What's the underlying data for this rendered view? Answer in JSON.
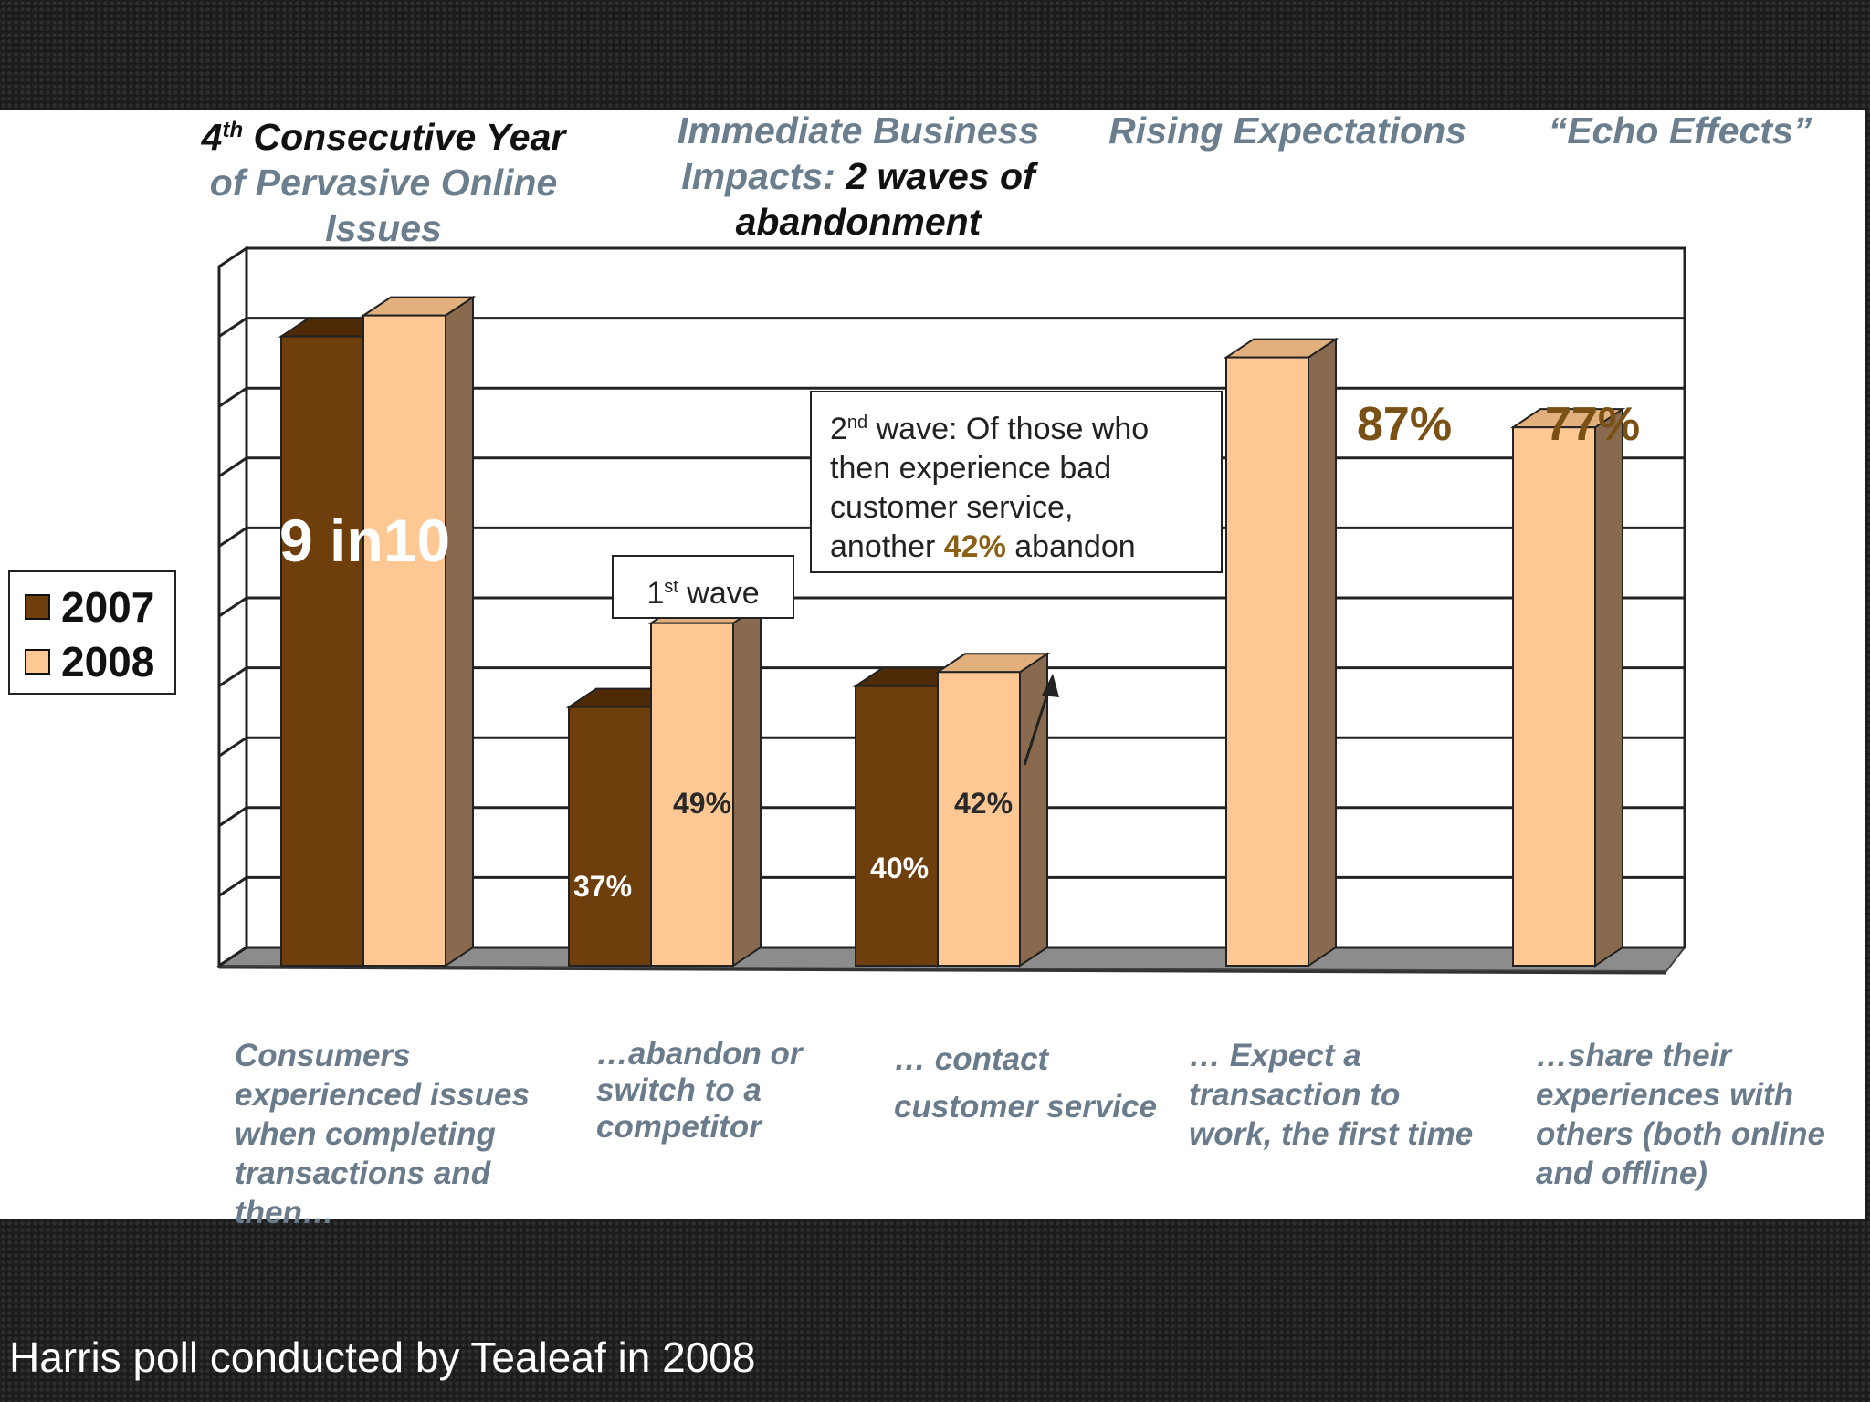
{
  "headers": {
    "col1": {
      "sup_num": "4",
      "sup": "th",
      "line1_rest": " Consecutive Year",
      "line2": "of Pervasive Online",
      "line3": "Issues"
    },
    "col2": {
      "line1": "Immediate Business",
      "line2_a": "Impacts: ",
      "line2_b": "2 waves of",
      "line3": "abandonment"
    },
    "col3": {
      "line1": "Rising Expectations"
    },
    "col4": {
      "line1": "“Echo Effects”"
    }
  },
  "legend": {
    "item1": "2007",
    "item2": "2008"
  },
  "callouts": {
    "first_wave": {
      "num": "1",
      "sup": "st",
      "text": " wave"
    },
    "second_wave": {
      "num": "2",
      "sup": "nd",
      "line1_rest": " wave: Of those who",
      "line2": "then experience bad",
      "line3": "customer service,",
      "line4_a": "another ",
      "line4_hl": "42%",
      "line4_b": " abandon"
    }
  },
  "categories": [
    [
      "Consumers",
      "experienced issues",
      "when completing",
      "transactions and",
      "then…"
    ],
    [
      "…abandon or",
      "switch to a",
      "competitor"
    ],
    [
      "… contact",
      "customer service"
    ],
    [
      "… Expect a",
      "transaction to",
      "work, the first time"
    ],
    [
      "…share their",
      "experiences with",
      "others (both online",
      "and offline)"
    ]
  ],
  "footer": "Harris poll conducted by Tealeaf in 2008",
  "colors": {
    "c2007": "#6e3f0c",
    "c2007_top": "#4e2a06",
    "c2008": "#fdc894",
    "c2008_top": "#e2b07c",
    "side": "#8a6a4e",
    "value_text": "#7a5114"
  },
  "chart_data": {
    "type": "bar",
    "title": "",
    "xlabel": "",
    "ylabel": "",
    "ylim": [
      0,
      100
    ],
    "grid": true,
    "legend_position": "left",
    "categories": [
      "Consumers experienced issues when completing transactions and then…",
      "…abandon or switch to a competitor",
      "… contact customer service",
      "… Expect a transaction to work, the first time",
      "…share their experiences with others (both online and offline)"
    ],
    "series": [
      {
        "name": "2007",
        "values": [
          90,
          37,
          40,
          null,
          null
        ]
      },
      {
        "name": "2008",
        "values": [
          93,
          49,
          42,
          87,
          77
        ]
      }
    ],
    "bar_labels": [
      {
        "text": "9 in10",
        "category": 0,
        "series": "2007",
        "color": "white"
      },
      {
        "text": "37%",
        "category": 1,
        "series": "2007",
        "color": "white"
      },
      {
        "text": "49%",
        "category": 1,
        "series": "2008",
        "color": "dark"
      },
      {
        "text": "40%",
        "category": 2,
        "series": "2007",
        "color": "white"
      },
      {
        "text": "42%",
        "category": 2,
        "series": "2008",
        "color": "dark"
      },
      {
        "text": "87%",
        "category": 3,
        "series": "2008",
        "color": "brown"
      },
      {
        "text": "77%",
        "category": 4,
        "series": "2008",
        "color": "brown"
      }
    ]
  }
}
